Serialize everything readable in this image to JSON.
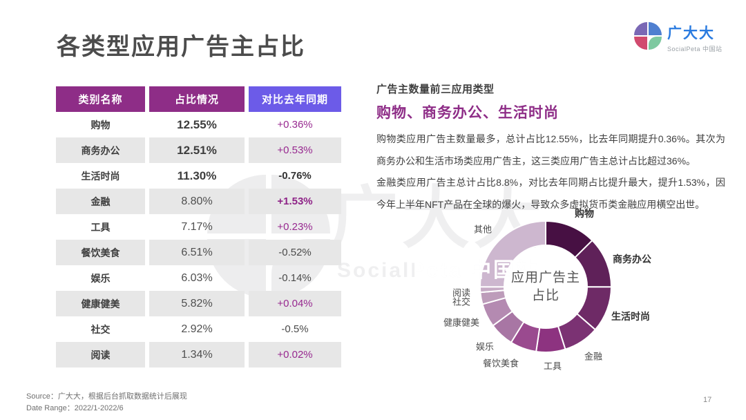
{
  "page": {
    "title": "各类型应用广告主占比",
    "page_number": "17",
    "footer_source": "Source：广大大，根据后台抓取数据统计后展现",
    "footer_date_range": "Date Range：2022/1-2022/6"
  },
  "logo": {
    "brand": "广大大",
    "subtitle": "SocialPeta 中国站",
    "brand_color": "#2a7be0",
    "quadrant_colors": [
      "#7a68b5",
      "#4f7fd0",
      "#d14a6e",
      "#7ec9a0"
    ]
  },
  "watermark": {
    "brand": "广大大",
    "subtitle": "SocialPeta 中国站"
  },
  "table": {
    "headers": [
      "类别名称",
      "占比情况",
      "对比去年同期"
    ],
    "header_colors": [
      "#8e2d87",
      "#8e2d87",
      "#6c5be8"
    ],
    "rows": [
      {
        "category": "购物",
        "share": "12.55%",
        "yoy": "+0.36%",
        "share_bold": true,
        "yoy_style": "purple"
      },
      {
        "category": "商务办公",
        "share": "12.51%",
        "yoy": "+0.53%",
        "share_bold": true,
        "yoy_style": "purple"
      },
      {
        "category": "生活时尚",
        "share": "11.30%",
        "yoy": "-0.76%",
        "share_bold": true,
        "yoy_style": "dark-bold"
      },
      {
        "category": "金融",
        "share": "8.80%",
        "yoy": "+1.53%",
        "share_bold": false,
        "yoy_style": "purple-bold"
      },
      {
        "category": "工具",
        "share": "7.17%",
        "yoy": "+0.23%",
        "share_bold": false,
        "yoy_style": "purple"
      },
      {
        "category": "餐饮美食",
        "share": "6.51%",
        "yoy": "-0.52%",
        "share_bold": false,
        "yoy_style": "dark"
      },
      {
        "category": "娱乐",
        "share": "6.03%",
        "yoy": "-0.14%",
        "share_bold": false,
        "yoy_style": "dark"
      },
      {
        "category": "健康健美",
        "share": "5.82%",
        "yoy": "+0.04%",
        "share_bold": false,
        "yoy_style": "purple"
      },
      {
        "category": "社交",
        "share": "2.92%",
        "yoy": "-0.5%",
        "share_bold": false,
        "yoy_style": "dark"
      },
      {
        "category": "阅读",
        "share": "1.34%",
        "yoy": "+0.02%",
        "share_bold": false,
        "yoy_style": "purple"
      }
    ]
  },
  "insight": {
    "kicker": "广告主数量前三应用类型",
    "headline": "购物、商务办公、生活时尚",
    "paragraph1": "购物类应用广告主数量最多，总计占比12.55%，比去年同期提升0.36%。其次为商务办公和生活市场类应用广告主，这三类应用广告主总计占比超过36%。",
    "paragraph2": "金融类应用广告主总计占比8.8%，对比去年同期占比提升最大，提升1.53%，因今年上半年NFT产品在全球的爆火，导致众多虚拟货币类金融应用横空出世。"
  },
  "chart_data": {
    "type": "pie",
    "donut": true,
    "start_angle": -90,
    "center_label": [
      "应用广告主",
      "占比"
    ],
    "categories": [
      "购物",
      "商务办公",
      "生活时尚",
      "金融",
      "工具",
      "餐饮美食",
      "娱乐",
      "健康健美",
      "社交",
      "阅读",
      "其他"
    ],
    "values": [
      12.55,
      12.51,
      11.3,
      8.8,
      7.17,
      6.51,
      6.03,
      5.82,
      2.92,
      1.34,
      25.05
    ],
    "colors": [
      "#471043",
      "#5f2159",
      "#6e2a66",
      "#7b3273",
      "#8d3380",
      "#9a4a8f",
      "#a876a4",
      "#b48ab1",
      "#bd9cba",
      "#c6abc5",
      "#cdb7cf"
    ],
    "bold_labels": [
      "购物",
      "商务办公",
      "生活时尚"
    ],
    "label_positions": [
      [
        246,
        34
      ],
      [
        315,
        100
      ],
      [
        313,
        183
      ],
      [
        259,
        240
      ],
      [
        200,
        254
      ],
      [
        125,
        250
      ],
      [
        102,
        226
      ],
      [
        68,
        191
      ],
      [
        68,
        161
      ],
      [
        68,
        148
      ],
      [
        99,
        56
      ]
    ]
  }
}
